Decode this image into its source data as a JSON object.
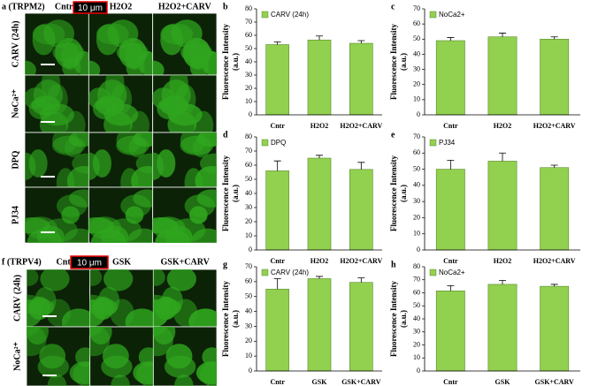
{
  "micrographs": [
    {
      "label": "a (TRPM2)",
      "columns": [
        "Cntr",
        "H2O2",
        "H2O2+CARV"
      ],
      "rows": [
        "CARV (24h)",
        "NoCa²⁺",
        "DPQ",
        "PJ34"
      ],
      "scale_bar": "10 μm"
    },
    {
      "label": "f (TRPV4)",
      "columns": [
        "Cntr",
        "GSK",
        "GSK+CARV"
      ],
      "rows": [
        "CARV (24h)",
        "NoCa²⁺"
      ],
      "scale_bar": "10 μm"
    }
  ],
  "chart_data": [
    {
      "type": "bar",
      "panel": "b",
      "ylabel": "Fluorescence Intensity",
      "ylabel_unit": "(a.u.)",
      "categories": [
        "Cntr",
        "H2O2",
        "H2O2+CARV"
      ],
      "series": [
        {
          "name": "CARV (24h)",
          "color": "#92d050",
          "values": [
            53,
            56.5,
            54
          ],
          "errors": [
            2,
            3,
            2
          ]
        }
      ],
      "ylim": [
        0,
        80
      ],
      "yticks": [
        0,
        10,
        20,
        30,
        40,
        50,
        60,
        70,
        80
      ]
    },
    {
      "type": "bar",
      "panel": "c",
      "ylabel": "Fluorescence Intensity",
      "ylabel_unit": "(a.u.)",
      "categories": [
        "Cntr",
        "H2O2",
        "H2O2+CARV"
      ],
      "series": [
        {
          "name": "NoCa2+",
          "color": "#92d050",
          "values": [
            49,
            51.5,
            50
          ],
          "errors": [
            2,
            2.5,
            1.5
          ]
        }
      ],
      "ylim": [
        0,
        70
      ],
      "yticks": [
        0,
        10,
        20,
        30,
        40,
        50,
        60,
        70
      ]
    },
    {
      "type": "bar",
      "panel": "d",
      "ylabel": "Fluorescence Intensity",
      "ylabel_unit": "(a.u.)",
      "categories": [
        "Cntr",
        "H2O2",
        "H2O2+CARV"
      ],
      "series": [
        {
          "name": "DPQ",
          "color": "#92d050",
          "values": [
            56,
            65,
            57
          ],
          "errors": [
            7,
            2,
            5
          ]
        }
      ],
      "ylim": [
        0,
        80
      ],
      "yticks": [
        0,
        10,
        20,
        30,
        40,
        50,
        60,
        70,
        80
      ]
    },
    {
      "type": "bar",
      "panel": "e",
      "ylabel": "Fluorescence Intensity",
      "ylabel_unit": "(a.u.)",
      "categories": [
        "Cntr",
        "H2O2",
        "H2O2+CARV"
      ],
      "series": [
        {
          "name": "PJ34",
          "color": "#92d050",
          "values": [
            50,
            55,
            51
          ],
          "errors": [
            5.5,
            5,
            1.5
          ]
        }
      ],
      "ylim": [
        0,
        70
      ],
      "yticks": [
        0,
        10,
        20,
        30,
        40,
        50,
        60,
        70
      ]
    },
    {
      "type": "bar",
      "panel": "g",
      "ylabel": "Fluorescence Intensity",
      "ylabel_unit": "(a.u.)",
      "categories": [
        "Cntr",
        "GSK",
        "GSK+CARV"
      ],
      "series": [
        {
          "name": "CARV (24h)",
          "color": "#92d050",
          "values": [
            55,
            62,
            59.5
          ],
          "errors": [
            7,
            1.5,
            3
          ]
        }
      ],
      "ylim": [
        0,
        70
      ],
      "yticks": [
        0,
        10,
        20,
        30,
        40,
        50,
        60,
        70
      ]
    },
    {
      "type": "bar",
      "panel": "h",
      "ylabel": "Fluorescence Intensity",
      "ylabel_unit": "(a.u.)",
      "categories": [
        "Cntr",
        "GSK",
        "GSK+CARV"
      ],
      "series": [
        {
          "name": "NoCa2+",
          "color": "#92d050",
          "values": [
            61.5,
            66.5,
            65
          ],
          "errors": [
            4,
            3,
            1.5
          ]
        }
      ],
      "ylim": [
        0,
        80
      ],
      "yticks": [
        0,
        10,
        20,
        30,
        40,
        50,
        60,
        70,
        80
      ]
    }
  ]
}
